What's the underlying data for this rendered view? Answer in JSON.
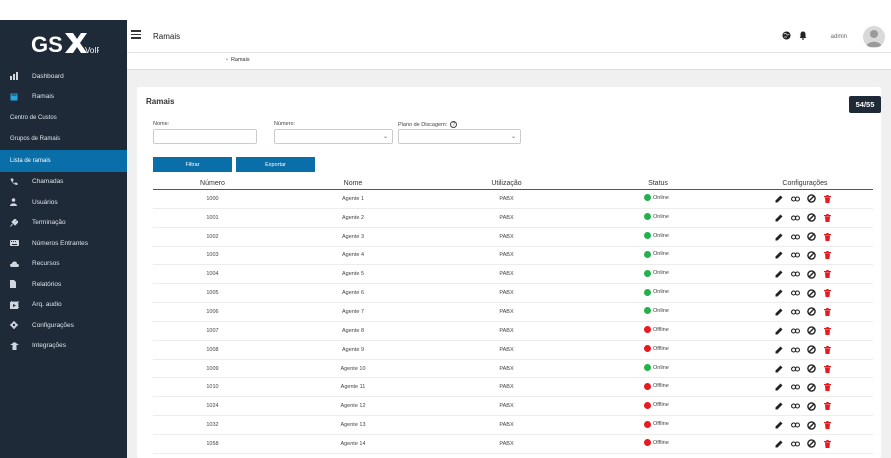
{
  "app": {
    "logo_text": "GSX",
    "logo_sub": "VoIP"
  },
  "header": {
    "title": "Ramais",
    "user": "admin"
  },
  "breadcrumb": {
    "item": "Ramais"
  },
  "sidebar": {
    "items": [
      {
        "label": "Dashboard",
        "icon": "chart-icon"
      },
      {
        "label": "Ramais",
        "icon": "book-icon"
      },
      {
        "label": "Centro de Custos",
        "sub": true
      },
      {
        "label": "Grupos de Ramais",
        "sub": true
      },
      {
        "label": "Lista de ramais",
        "sub": true,
        "active": true
      },
      {
        "label": "Chamadas",
        "icon": "phone-icon"
      },
      {
        "label": "Usuários",
        "icon": "user-icon"
      },
      {
        "label": "Terminação",
        "icon": "plug-icon"
      },
      {
        "label": "Números Entrantes",
        "icon": "keyboard-icon"
      },
      {
        "label": "Recursos",
        "icon": "cloud-icon"
      },
      {
        "label": "Relatórios",
        "icon": "file-icon"
      },
      {
        "label": "Arq. audio",
        "icon": "media-icon"
      },
      {
        "label": "Configurações",
        "icon": "gear-icon"
      },
      {
        "label": "Integrações",
        "icon": "network-icon"
      }
    ]
  },
  "card": {
    "title": "Ramais",
    "count": "54/55"
  },
  "filters": {
    "nome_label": "Nome:",
    "numero_label": "Número:",
    "plano_label": "Plano de Discagem:",
    "filtrar": "Filtrar",
    "exportar": "Exportar"
  },
  "table": {
    "headers": [
      "Número",
      "Nome",
      "Utilização",
      "Status",
      "Configurações"
    ],
    "rows": [
      {
        "numero": "1000",
        "nome": "Agente 1",
        "uso": "PABX",
        "status": "Online"
      },
      {
        "numero": "1001",
        "nome": "Agente 2",
        "uso": "PABX",
        "status": "Online"
      },
      {
        "numero": "1002",
        "nome": "Agente 3",
        "uso": "PABX",
        "status": "Online"
      },
      {
        "numero": "1003",
        "nome": "Agente 4",
        "uso": "PABX",
        "status": "Online"
      },
      {
        "numero": "1004",
        "nome": "Agente 5",
        "uso": "PABX",
        "status": "Online"
      },
      {
        "numero": "1005",
        "nome": "Agente 6",
        "uso": "PABX",
        "status": "Online"
      },
      {
        "numero": "1006",
        "nome": "Agente 7",
        "uso": "PABX",
        "status": "Online"
      },
      {
        "numero": "1007",
        "nome": "Agente 8",
        "uso": "PABX",
        "status": "Offline"
      },
      {
        "numero": "1008",
        "nome": "Agente 9",
        "uso": "PABX",
        "status": "Offline"
      },
      {
        "numero": "1009",
        "nome": "Agente 10",
        "uso": "PABX",
        "status": "Online"
      },
      {
        "numero": "1010",
        "nome": "Agente 11",
        "uso": "PABX",
        "status": "Offline"
      },
      {
        "numero": "1024",
        "nome": "Agente 12",
        "uso": "PABX",
        "status": "Offline"
      },
      {
        "numero": "1032",
        "nome": "Agente 13",
        "uso": "PABX",
        "status": "Offline"
      },
      {
        "numero": "1058",
        "nome": "Agente 14",
        "uso": "PABX",
        "status": "Offline"
      }
    ]
  },
  "colors": {
    "online": "#22b14c",
    "offline": "#e8191f",
    "accent": "#0a6fa8",
    "sidebar": "#1e2a38",
    "trash": "#e8191f"
  }
}
